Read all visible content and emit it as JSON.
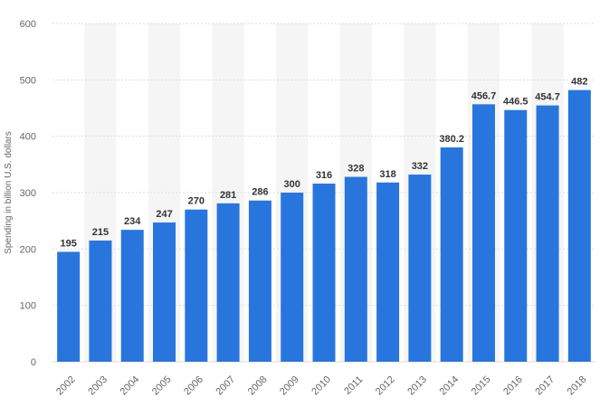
{
  "chart_data": {
    "type": "bar",
    "title": "",
    "xlabel": "",
    "ylabel": "Spending in billion U.S. dollars",
    "ylim": [
      0,
      600
    ],
    "yticks": [
      0,
      100,
      200,
      300,
      400,
      500,
      600
    ],
    "grid": true,
    "categories": [
      "2002",
      "2003",
      "2004",
      "2005",
      "2006",
      "2007",
      "2008",
      "2009",
      "2010",
      "2011",
      "2012",
      "2013",
      "2014",
      "2015",
      "2016",
      "2017",
      "2018"
    ],
    "values": [
      195,
      215,
      234,
      247,
      270,
      281,
      286,
      300,
      316,
      328,
      318,
      332,
      380.2,
      456.7,
      446.5,
      454.7,
      482
    ],
    "value_labels": [
      "195",
      "215",
      "234",
      "247",
      "270",
      "281",
      "286",
      "300",
      "316",
      "328",
      "318",
      "332",
      "380.2",
      "456.7",
      "446.5",
      "454.7",
      "482"
    ],
    "colors": {
      "bar": "#2876dd",
      "band": "#f5f5f5",
      "grid": "#dddddd"
    }
  }
}
